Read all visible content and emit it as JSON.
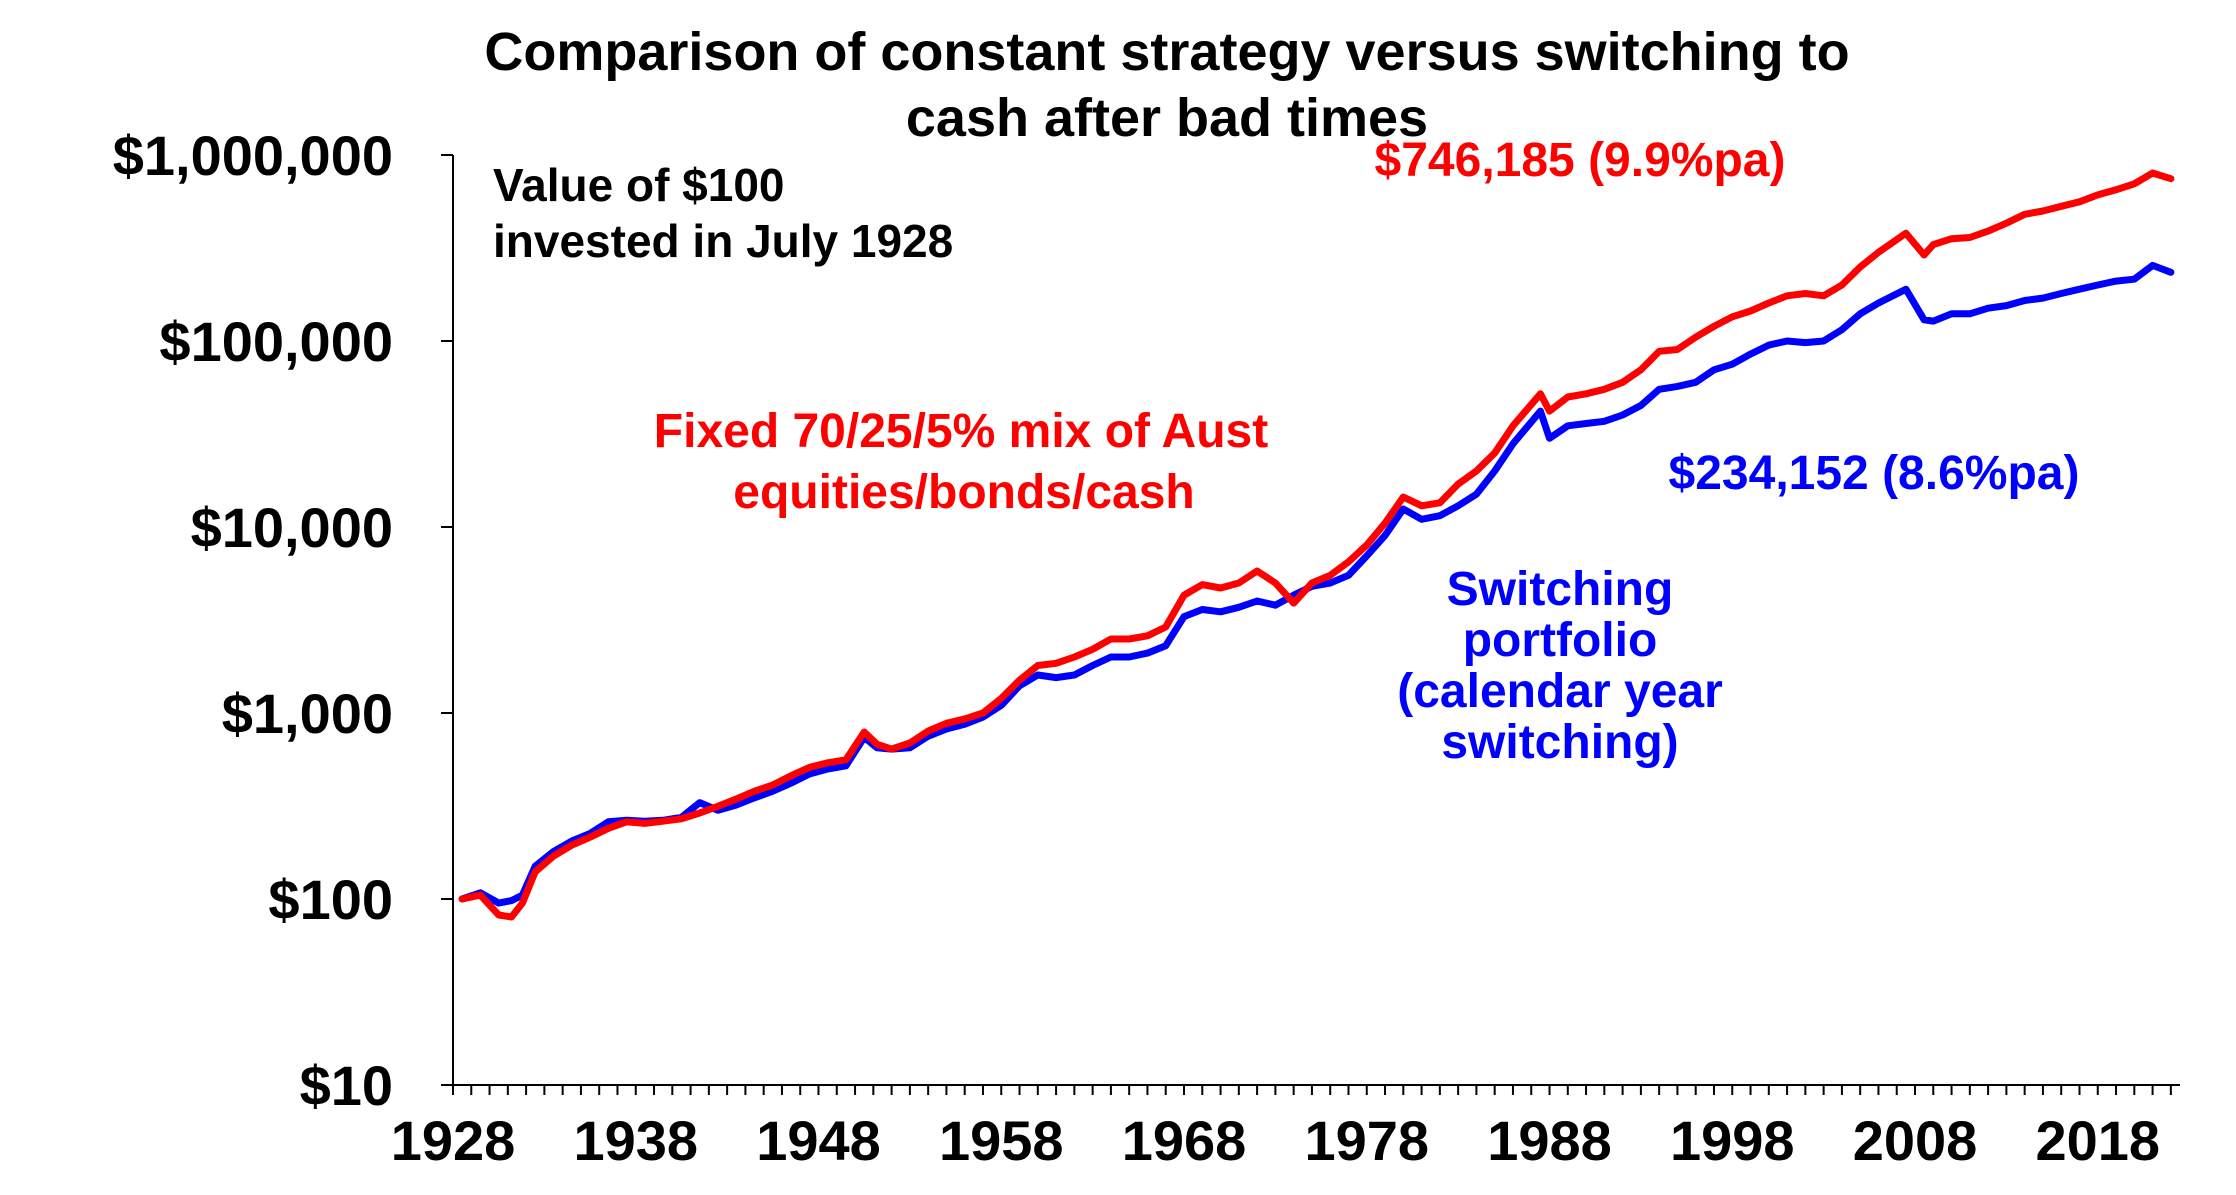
{
  "chart_data": {
    "type": "line",
    "title": "Comparison of constant strategy versus switching to cash after bad times",
    "title_lines": [
      "Comparison of constant strategy versus switching to",
      "cash after bad times"
    ],
    "xlabel": "",
    "ylabel": "",
    "y_scale": "log",
    "ylim": [
      10,
      1000000
    ],
    "xlim": [
      1928,
      2022.5
    ],
    "y_ticks": [
      {
        "value": 10,
        "label": "$10"
      },
      {
        "value": 100,
        "label": "$100"
      },
      {
        "value": 1000,
        "label": "$1,000"
      },
      {
        "value": 10000,
        "label": "$10,000"
      },
      {
        "value": 100000,
        "label": "$100,000"
      },
      {
        "value": 1000000,
        "label": "$1,000,000"
      }
    ],
    "x_ticks": [
      {
        "value": 1928,
        "label": "1928"
      },
      {
        "value": 1938,
        "label": "1938"
      },
      {
        "value": 1948,
        "label": "1948"
      },
      {
        "value": 1958,
        "label": "1958"
      },
      {
        "value": 1968,
        "label": "1968"
      },
      {
        "value": 1978,
        "label": "1978"
      },
      {
        "value": 1988,
        "label": "1988"
      },
      {
        "value": 1998,
        "label": "1998"
      },
      {
        "value": 2008,
        "label": "2008"
      },
      {
        "value": 2018,
        "label": "2018"
      }
    ],
    "series": [
      {
        "name": "Fixed 70/25/5% mix of Aust equities/bonds/cash",
        "color": "#ff0000",
        "x": [
          1928.5,
          1929.5,
          1930.5,
          1931.2,
          1931.8,
          1932.5,
          1933.5,
          1934.5,
          1935.5,
          1936.5,
          1937.5,
          1938.5,
          1939.5,
          1940.5,
          1941.5,
          1942.5,
          1943.5,
          1944.5,
          1945.5,
          1946.5,
          1947.5,
          1948.5,
          1949.5,
          1950.5,
          1951.2,
          1952,
          1953,
          1954,
          1955,
          1956,
          1957,
          1958,
          1959,
          1960,
          1961,
          1962,
          1963,
          1964,
          1965,
          1966,
          1967,
          1968,
          1969,
          1970,
          1971,
          1972,
          1973,
          1974,
          1975,
          1976,
          1977,
          1978,
          1979,
          1980,
          1981,
          1982,
          1983,
          1984,
          1985,
          1986,
          1987.5,
          1988,
          1989,
          1990,
          1991,
          1992,
          1993,
          1994,
          1995,
          1996,
          1997,
          1998,
          1999,
          2000,
          2001,
          2002,
          2003,
          2004,
          2005,
          2006,
          2007.5,
          2008.5,
          2009,
          2010,
          2011,
          2012,
          2013,
          2014,
          2015,
          2016,
          2017,
          2018,
          2019,
          2020,
          2021,
          2022
        ],
        "values": [
          100,
          105,
          82,
          80,
          95,
          140,
          170,
          195,
          215,
          240,
          260,
          255,
          262,
          270,
          290,
          315,
          345,
          380,
          410,
          460,
          510,
          540,
          560,
          790,
          680,
          640,
          690,
          800,
          880,
          930,
          1000,
          1200,
          1500,
          1800,
          1850,
          2000,
          2200,
          2500,
          2500,
          2600,
          2900,
          4300,
          4900,
          4700,
          5000,
          5800,
          5000,
          3900,
          5000,
          5500,
          6500,
          8000,
          10500,
          14500,
          13000,
          13500,
          17000,
          20000,
          25000,
          35000,
          52000,
          42000,
          50000,
          52000,
          55000,
          60000,
          70000,
          88000,
          90000,
          105000,
          120000,
          135000,
          145000,
          160000,
          175000,
          180000,
          175000,
          200000,
          250000,
          300000,
          380000,
          290000,
          330000,
          355000,
          360000,
          390000,
          430000,
          480000,
          500000,
          530000,
          560000,
          610000,
          650000,
          700000,
          800000,
          746185
        ]
      },
      {
        "name": "Switching portfolio (calendar year switching)",
        "color": "#0000ff",
        "x": [
          1928.5,
          1929.5,
          1930.5,
          1931.2,
          1931.8,
          1932.5,
          1933.5,
          1934.5,
          1935.5,
          1936.5,
          1937.5,
          1938.5,
          1939.5,
          1940.5,
          1941.5,
          1942.5,
          1943.5,
          1944.5,
          1945.5,
          1946.5,
          1947.5,
          1948.5,
          1949.5,
          1950.5,
          1951.2,
          1952,
          1953,
          1954,
          1955,
          1956,
          1957,
          1958,
          1959,
          1960,
          1961,
          1962,
          1963,
          1964,
          1965,
          1966,
          1967,
          1968,
          1969,
          1970,
          1971,
          1972,
          1973,
          1974,
          1975,
          1976,
          1977,
          1978,
          1979,
          1980,
          1981,
          1982,
          1983,
          1984,
          1985,
          1986,
          1987.5,
          1988,
          1989,
          1990,
          1991,
          1992,
          1993,
          1994,
          1995,
          1996,
          1997,
          1998,
          1999,
          2000,
          2001,
          2002,
          2003,
          2004,
          2005,
          2006,
          2007.5,
          2008.5,
          2009,
          2010,
          2011,
          2012,
          2013,
          2014,
          2015,
          2016,
          2017,
          2018,
          2019,
          2020,
          2021,
          2022
        ],
        "values": [
          100,
          108,
          95,
          98,
          105,
          150,
          180,
          205,
          225,
          260,
          265,
          262,
          265,
          275,
          330,
          300,
          320,
          350,
          380,
          420,
          470,
          500,
          520,
          740,
          650,
          640,
          650,
          750,
          820,
          870,
          950,
          1100,
          1400,
          1600,
          1550,
          1600,
          1800,
          2000,
          2000,
          2100,
          2300,
          3300,
          3600,
          3500,
          3700,
          4000,
          3800,
          4300,
          4800,
          5000,
          5500,
          7000,
          9000,
          12500,
          11000,
          11500,
          13000,
          15000,
          20000,
          28000,
          42000,
          30000,
          35000,
          36000,
          37000,
          40000,
          45000,
          55000,
          57000,
          60000,
          70000,
          75000,
          85000,
          95000,
          100000,
          98000,
          100000,
          115000,
          140000,
          160000,
          190000,
          130000,
          128000,
          140000,
          140000,
          150000,
          155000,
          165000,
          170000,
          180000,
          190000,
          200000,
          210000,
          215000,
          255000,
          234152
        ]
      }
    ],
    "annotations": {
      "value_note": [
        "Value of $100",
        "invested in July 1928"
      ],
      "fixed_label": [
        "Fixed 70/25/5% mix of Aust",
        "equities/bonds/cash"
      ],
      "fixed_end": "$746,185 (9.9%pa)",
      "switch_end": "$234,152 (8.6%pa)",
      "switch_label": [
        "Switching",
        "portfolio",
        "(calendar year",
        "switching)"
      ]
    }
  }
}
